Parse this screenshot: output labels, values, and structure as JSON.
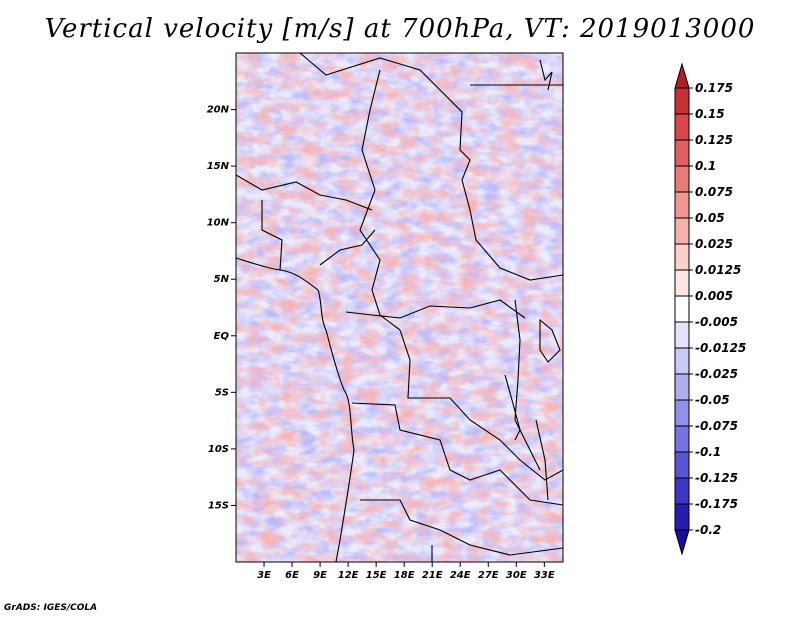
{
  "title": "Vertical velocity [m/s] at 700hPa, VT: 2019013000",
  "credit": "GrADS: IGES/COLA",
  "map": {
    "lon_range": [
      0,
      35
    ],
    "lat_range": [
      -20,
      25
    ],
    "lat_ticks": [
      {
        "value": 20,
        "label": "20N"
      },
      {
        "value": 15,
        "label": "15N"
      },
      {
        "value": 10,
        "label": "10N"
      },
      {
        "value": 5,
        "label": "5N"
      },
      {
        "value": 0,
        "label": "EQ"
      },
      {
        "value": -5,
        "label": "5S"
      },
      {
        "value": -10,
        "label": "10S"
      },
      {
        "value": -15,
        "label": "15S"
      }
    ],
    "lon_ticks": [
      {
        "value": 3,
        "label": "3E"
      },
      {
        "value": 6,
        "label": "6E"
      },
      {
        "value": 9,
        "label": "9E"
      },
      {
        "value": 12,
        "label": "12E"
      },
      {
        "value": 15,
        "label": "15E"
      },
      {
        "value": 18,
        "label": "18E"
      },
      {
        "value": 21,
        "label": "21E"
      },
      {
        "value": 24,
        "label": "24E"
      },
      {
        "value": 27,
        "label": "27E"
      },
      {
        "value": 30,
        "label": "30E"
      },
      {
        "value": 33,
        "label": "33E"
      }
    ]
  },
  "colorbar": {
    "labels": [
      "0.175",
      "0.15",
      "0.125",
      "0.1",
      "0.075",
      "0.05",
      "0.025",
      "0.0125",
      "0.005",
      "-0.005",
      "-0.0125",
      "-0.025",
      "-0.05",
      "-0.075",
      "-0.1",
      "-0.125",
      "-0.175",
      "-0.2"
    ],
    "colors": [
      "#b21e24",
      "#c93035",
      "#d9474a",
      "#e35f5f",
      "#ea7a77",
      "#f09690",
      "#f5b3ac",
      "#f9d0ca",
      "#fce6e2",
      "#ffffff",
      "#e3e3fb",
      "#c9c9f6",
      "#aeaef1",
      "#9191ea",
      "#7575e1",
      "#5656d6",
      "#3a36c6",
      "#241db1",
      "#190f99"
    ]
  }
}
